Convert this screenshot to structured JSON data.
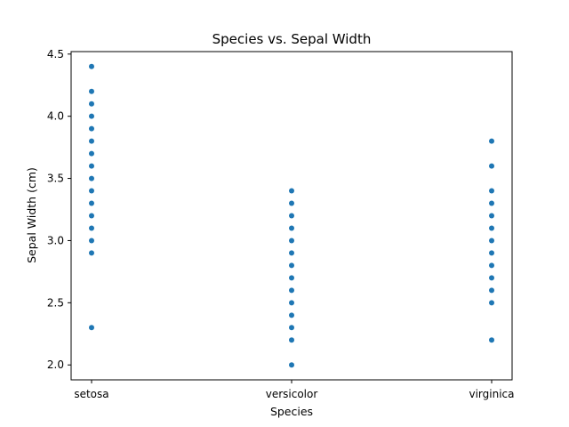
{
  "chart_data": {
    "type": "scatter",
    "title": "Species vs. Sepal Width",
    "xlabel": "Species",
    "ylabel": "Sepal Width (cm)",
    "categories": [
      "setosa",
      "versicolor",
      "virginica"
    ],
    "ylim": [
      1.88,
      4.52
    ],
    "yticks": [
      2.0,
      2.5,
      3.0,
      3.5,
      4.0,
      4.5
    ],
    "ytick_labels": [
      "2.0",
      "2.5",
      "3.0",
      "3.5",
      "4.0",
      "4.5"
    ],
    "grid": false,
    "point_color": "#1f77b4",
    "series": [
      {
        "category": "setosa",
        "values": [
          4.4,
          4.2,
          4.1,
          4.0,
          3.9,
          3.8,
          3.7,
          3.6,
          3.5,
          3.4,
          3.3,
          3.2,
          3.1,
          3.0,
          2.9,
          2.3
        ]
      },
      {
        "category": "versicolor",
        "values": [
          3.4,
          3.3,
          3.2,
          3.1,
          3.0,
          2.9,
          2.8,
          2.7,
          2.6,
          2.5,
          2.4,
          2.3,
          2.2,
          2.0
        ]
      },
      {
        "category": "virginica",
        "values": [
          3.8,
          3.6,
          3.4,
          3.3,
          3.2,
          3.1,
          3.0,
          2.9,
          2.8,
          2.7,
          2.6,
          2.5,
          2.2
        ]
      }
    ]
  }
}
